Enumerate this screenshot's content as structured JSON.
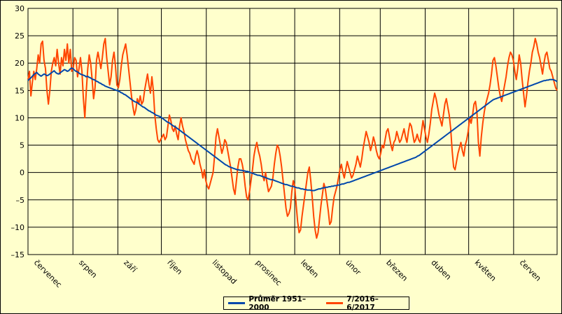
{
  "chart_data": {
    "type": "line",
    "yticks": [
      30,
      25,
      20,
      15,
      10,
      5,
      0,
      -5,
      -10,
      -15
    ],
    "ylim": [
      -15,
      30
    ],
    "grid": true,
    "legend_placement": "bottom-center",
    "months": [
      "červenec",
      "srpen",
      "září",
      "říjen",
      "listopad",
      "prosinec",
      "leden",
      "únor",
      "březen",
      "duben",
      "květen",
      "červen"
    ],
    "days_per_month": [
      31,
      31,
      30,
      31,
      30,
      31,
      31,
      28,
      31,
      30,
      31,
      30
    ],
    "series": [
      {
        "name": "Průměr 1951–2000",
        "color": "#0047AB",
        "values": [
          16.8,
          17.1,
          17.3,
          17.6,
          17.9,
          18.1,
          18.3,
          18.0,
          17.8,
          17.6,
          17.8,
          18.0,
          17.9,
          17.7,
          17.8,
          18.0,
          18.2,
          18.4,
          18.6,
          18.3,
          18.1,
          18.0,
          18.2,
          18.4,
          18.6,
          18.8,
          18.7,
          18.5,
          18.6,
          18.9,
          19.1,
          19.0,
          18.7,
          18.5,
          18.4,
          18.2,
          18.0,
          17.9,
          17.8,
          17.7,
          17.5,
          17.6,
          17.4,
          17.3,
          17.1,
          17.0,
          16.9,
          16.7,
          16.6,
          16.4,
          16.3,
          16.1,
          16.0,
          15.8,
          15.7,
          15.6,
          15.5,
          15.4,
          15.3,
          15.2,
          15.1,
          15.0,
          14.9,
          14.8,
          14.6,
          14.5,
          14.3,
          14.2,
          14.0,
          13.8,
          13.6,
          13.4,
          13.2,
          13.0,
          12.9,
          12.8,
          12.6,
          12.4,
          12.2,
          12.0,
          11.9,
          11.7,
          11.5,
          11.3,
          11.2,
          11.0,
          10.9,
          10.7,
          10.5,
          10.4,
          10.3,
          10.2,
          10.0,
          9.8,
          9.6,
          9.4,
          9.2,
          9.1,
          8.9,
          8.7,
          8.5,
          8.4,
          8.2,
          8.0,
          7.8,
          7.6,
          7.4,
          7.2,
          7.0,
          6.8,
          6.6,
          6.4,
          6.2,
          6.0,
          5.8,
          5.6,
          5.4,
          5.2,
          5.0,
          4.8,
          4.6,
          4.4,
          4.2,
          4.0,
          3.8,
          3.6,
          3.4,
          3.2,
          3.0,
          2.8,
          2.6,
          2.4,
          2.2,
          2.0,
          1.8,
          1.6,
          1.4,
          1.3,
          1.1,
          1.0,
          0.9,
          0.8,
          0.7,
          0.6,
          0.5,
          0.5,
          0.4,
          0.4,
          0.3,
          0.3,
          0.2,
          0.2,
          0.1,
          0.0,
          -0.1,
          -0.2,
          -0.3,
          -0.4,
          -0.5,
          -0.5,
          -0.6,
          -0.7,
          -0.8,
          -0.9,
          -1.0,
          -1.1,
          -1.2,
          -1.3,
          -1.3,
          -1.4,
          -1.5,
          -1.6,
          -1.7,
          -1.8,
          -1.9,
          -2.0,
          -2.1,
          -2.2,
          -2.2,
          -2.3,
          -2.4,
          -2.5,
          -2.5,
          -2.6,
          -2.7,
          -2.8,
          -2.8,
          -2.9,
          -3.0,
          -3.0,
          -3.1,
          -3.1,
          -3.2,
          -3.2,
          -3.2,
          -3.3,
          -3.3,
          -3.3,
          -3.2,
          -3.1,
          -3.0,
          -3.0,
          -2.9,
          -2.8,
          -2.8,
          -2.7,
          -2.7,
          -2.6,
          -2.6,
          -2.5,
          -2.5,
          -2.4,
          -2.4,
          -2.3,
          -2.3,
          -2.2,
          -2.1,
          -2.1,
          -2.0,
          -1.9,
          -1.8,
          -1.8,
          -1.7,
          -1.6,
          -1.5,
          -1.4,
          -1.3,
          -1.2,
          -1.1,
          -1.0,
          -0.9,
          -0.8,
          -0.7,
          -0.6,
          -0.5,
          -0.4,
          -0.3,
          -0.2,
          -0.1,
          0.0,
          0.1,
          0.2,
          0.3,
          0.4,
          0.5,
          0.6,
          0.7,
          0.8,
          0.9,
          1.0,
          1.1,
          1.2,
          1.3,
          1.4,
          1.5,
          1.6,
          1.7,
          1.8,
          1.9,
          2.0,
          2.1,
          2.2,
          2.3,
          2.4,
          2.5,
          2.6,
          2.7,
          2.8,
          3.0,
          3.1,
          3.3,
          3.5,
          3.7,
          3.9,
          4.1,
          4.3,
          4.5,
          4.7,
          4.9,
          5.1,
          5.3,
          5.5,
          5.7,
          5.9,
          6.1,
          6.3,
          6.5,
          6.7,
          6.9,
          7.1,
          7.3,
          7.5,
          7.7,
          7.9,
          8.1,
          8.3,
          8.5,
          8.7,
          8.9,
          9.1,
          9.3,
          9.5,
          9.7,
          9.9,
          10.1,
          10.3,
          10.5,
          10.7,
          10.9,
          11.1,
          11.3,
          11.5,
          11.7,
          11.9,
          12.1,
          12.3,
          12.5,
          12.7,
          12.9,
          13.1,
          13.3,
          13.4,
          13.5,
          13.6,
          13.7,
          13.8,
          13.9,
          14.0,
          14.1,
          14.2,
          14.3,
          14.4,
          14.5,
          14.6,
          14.7,
          14.8,
          14.9,
          15.0,
          15.1,
          15.2,
          15.3,
          15.4,
          15.5,
          15.6,
          15.7,
          15.8,
          15.9,
          16.0,
          16.1,
          16.2,
          16.3,
          16.4,
          16.5,
          16.6,
          16.7,
          16.8,
          16.8,
          16.9,
          16.9,
          17.0,
          17.0,
          17.0,
          16.9,
          16.8,
          16.6
        ]
      },
      {
        "name": "7/2016–6/2017",
        "color": "#FF4500",
        "values": [
          17.0,
          18.5,
          14.0,
          16.5,
          18.5,
          17.0,
          19.0,
          21.5,
          20.0,
          23.5,
          24.0,
          20.5,
          19.0,
          15.0,
          12.5,
          15.0,
          18.5,
          20.0,
          21.0,
          19.5,
          22.5,
          20.0,
          18.0,
          21.0,
          19.5,
          22.5,
          20.5,
          23.5,
          20.0,
          22.5,
          18.5,
          19.0,
          21.0,
          20.5,
          17.5,
          19.0,
          21.0,
          18.5,
          13.5,
          10.0,
          15.0,
          19.0,
          21.5,
          20.0,
          17.0,
          13.5,
          15.5,
          20.5,
          22.0,
          20.5,
          19.0,
          21.0,
          23.5,
          24.5,
          21.0,
          18.5,
          16.0,
          17.5,
          20.5,
          22.0,
          19.5,
          16.0,
          15.5,
          17.0,
          19.5,
          21.5,
          22.5,
          23.5,
          21.5,
          19.0,
          16.5,
          14.0,
          12.0,
          10.5,
          11.5,
          13.5,
          12.5,
          14.0,
          12.5,
          13.0,
          15.0,
          16.5,
          18.0,
          16.0,
          14.5,
          17.5,
          15.0,
          10.5,
          8.0,
          6.0,
          5.5,
          6.0,
          6.5,
          7.0,
          6.0,
          6.5,
          8.5,
          10.5,
          9.5,
          8.0,
          7.5,
          8.5,
          7.0,
          6.0,
          8.5,
          10.0,
          8.5,
          7.5,
          6.0,
          5.0,
          4.0,
          3.5,
          2.5,
          2.0,
          1.5,
          3.0,
          4.0,
          3.0,
          1.5,
          0.5,
          -1.0,
          0.5,
          -1.5,
          -2.5,
          -3.0,
          -2.0,
          -1.0,
          0.0,
          3.0,
          6.5,
          8.0,
          6.5,
          5.0,
          3.5,
          4.5,
          6.0,
          5.5,
          4.0,
          2.5,
          1.0,
          -1.0,
          -3.0,
          -4.0,
          -1.5,
          1.0,
          2.5,
          2.5,
          1.5,
          0.0,
          -2.5,
          -4.5,
          -5.0,
          -3.5,
          -1.5,
          0.5,
          3.0,
          4.5,
          5.5,
          4.0,
          3.0,
          1.5,
          -0.5,
          -1.5,
          0.0,
          -2.0,
          -3.5,
          -3.0,
          -2.5,
          -1.0,
          1.5,
          3.5,
          5.0,
          4.5,
          3.0,
          1.0,
          -1.5,
          -4.0,
          -6.5,
          -8.0,
          -7.5,
          -6.5,
          -3.5,
          -1.5,
          -2.5,
          -6.0,
          -9.0,
          -11.0,
          -10.5,
          -8.0,
          -6.0,
          -4.0,
          -2.0,
          0.0,
          1.0,
          -1.5,
          -4.5,
          -8.0,
          -10.5,
          -12.0,
          -11.0,
          -8.5,
          -6.0,
          -4.0,
          -2.0,
          -3.0,
          -5.0,
          -7.0,
          -9.5,
          -9.0,
          -6.5,
          -4.5,
          -3.5,
          -2.5,
          -1.0,
          0.5,
          1.5,
          0.0,
          -1.0,
          0.5,
          2.0,
          1.0,
          0.0,
          -1.0,
          -0.5,
          0.5,
          1.5,
          3.0,
          2.0,
          1.0,
          2.5,
          4.5,
          6.0,
          7.5,
          6.5,
          5.5,
          4.0,
          5.0,
          6.5,
          5.5,
          4.0,
          3.0,
          2.5,
          3.5,
          5.0,
          4.5,
          6.0,
          7.5,
          8.0,
          6.5,
          5.0,
          4.0,
          5.5,
          6.0,
          7.5,
          6.5,
          5.5,
          6.0,
          7.0,
          8.0,
          6.5,
          5.5,
          7.5,
          9.0,
          8.5,
          7.0,
          5.5,
          6.0,
          7.0,
          6.0,
          5.5,
          7.5,
          9.5,
          8.0,
          6.5,
          5.5,
          7.0,
          9.0,
          11.5,
          13.0,
          14.5,
          13.5,
          12.0,
          10.5,
          9.5,
          8.5,
          10.5,
          12.5,
          13.5,
          12.0,
          10.5,
          8.0,
          4.0,
          1.0,
          0.5,
          2.0,
          3.5,
          4.5,
          5.5,
          4.0,
          3.0,
          5.0,
          6.0,
          7.5,
          10.0,
          9.0,
          10.5,
          12.5,
          13.0,
          11.0,
          5.5,
          3.0,
          6.5,
          9.0,
          11.0,
          12.5,
          13.5,
          14.5,
          16.0,
          18.0,
          20.5,
          21.0,
          19.5,
          17.5,
          15.5,
          14.0,
          13.0,
          14.5,
          16.0,
          17.5,
          19.5,
          21.0,
          22.0,
          21.5,
          20.5,
          18.5,
          17.0,
          19.0,
          21.5,
          20.0,
          17.0,
          14.5,
          12.0,
          14.0,
          16.5,
          18.5,
          20.0,
          22.0,
          23.0,
          24.5,
          23.5,
          22.0,
          21.0,
          19.5,
          18.0,
          20.0,
          21.5,
          22.0,
          20.5,
          19.0,
          18.5,
          17.5,
          16.5,
          15.5,
          15.0
        ]
      }
    ]
  }
}
